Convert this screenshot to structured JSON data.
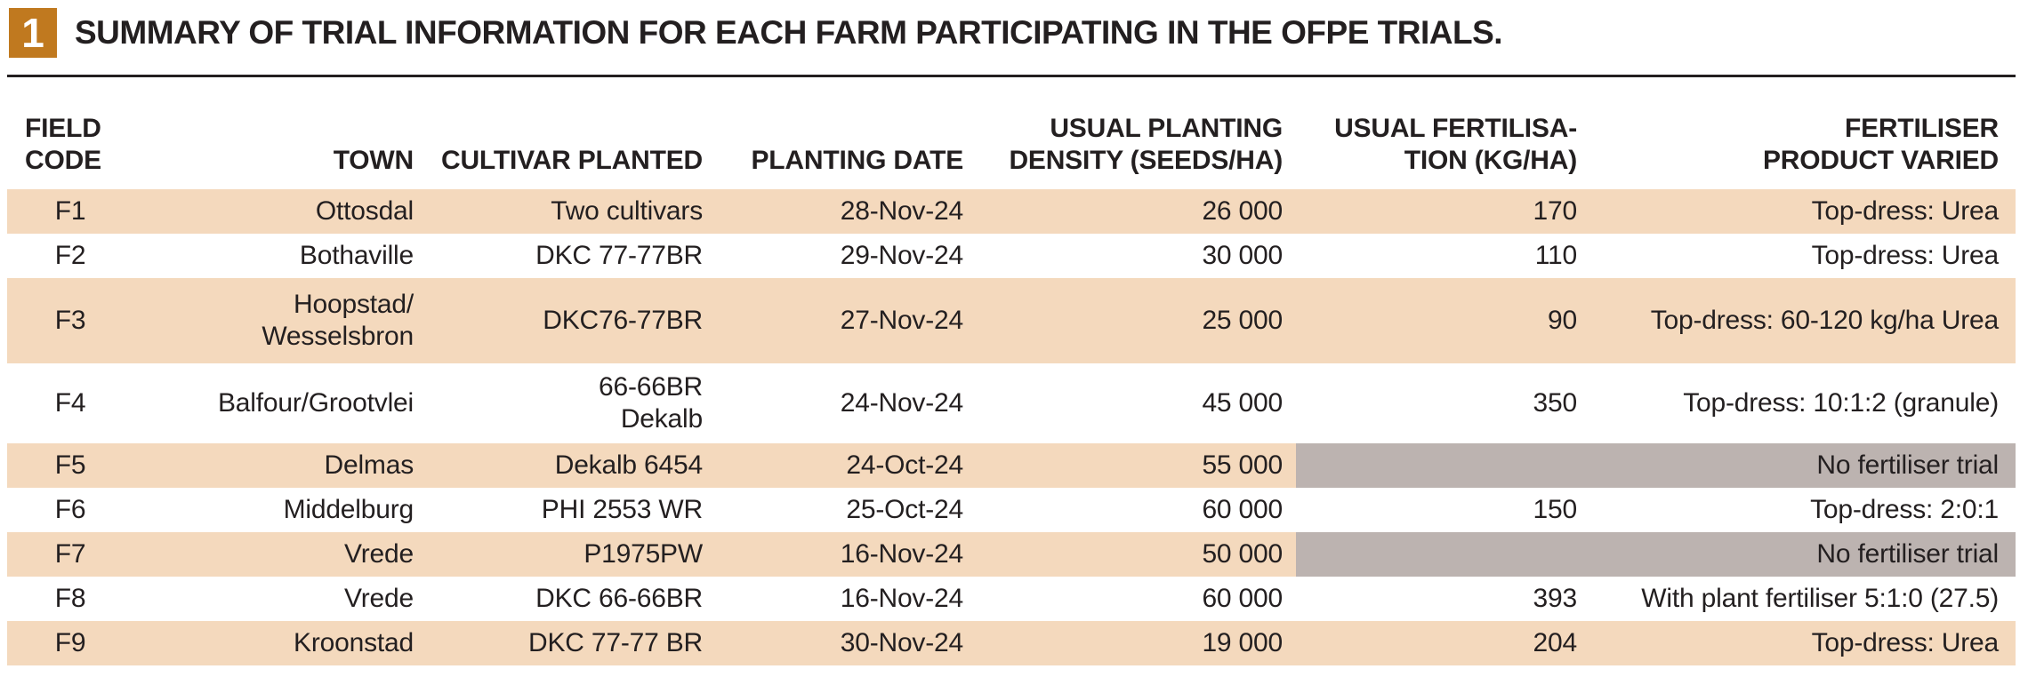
{
  "figure": {
    "number": "1",
    "title": "SUMMARY OF TRIAL INFORMATION FOR EACH FARM PARTICIPATING IN THE OFPE TRIALS."
  },
  "table": {
    "headers": {
      "field_code": [
        "FIELD",
        "CODE"
      ],
      "town": "TOWN",
      "cultivar": "CULTIVAR PLANTED",
      "planting_date": "PLANTING DATE",
      "density": [
        "USUAL PLANTING",
        "DENSITY (SEEDS/HA)"
      ],
      "fertilisation": [
        "USUAL FERTILISA-",
        "TION (KG/HA)"
      ],
      "product": [
        "FERTILISER",
        "PRODUCT VARIED"
      ]
    },
    "rows": [
      {
        "code": "F1",
        "town": "Ottosdal",
        "cultivar": "Two cultivars",
        "date": "28-Nov-24",
        "density": "26 000",
        "fertilisation": "170",
        "product": "Top-dress: Urea"
      },
      {
        "code": "F2",
        "town": "Bothaville",
        "cultivar": "DKC 77-77BR",
        "date": "29-Nov-24",
        "density": "30 000",
        "fertilisation": "110",
        "product": "Top-dress: Urea"
      },
      {
        "code": "F3",
        "town_lines": [
          "Hoopstad/",
          "Wesselsbron"
        ],
        "cultivar": "DKC76-77BR",
        "date": "27-Nov-24",
        "density": "25 000",
        "fertilisation": "90",
        "product": "Top-dress: 60-120 kg/ha Urea"
      },
      {
        "code": "F4",
        "town": "Balfour/Grootvlei",
        "cultivar_lines": [
          "66-66BR",
          "Dekalb"
        ],
        "date": "24-Nov-24",
        "density": "45 000",
        "fertilisation": "350",
        "product": "Top-dress: 10:1:2 (granule)"
      },
      {
        "code": "F5",
        "town": "Delmas",
        "cultivar": "Dekalb 6454",
        "date": "24-Oct-24",
        "density": "55 000",
        "no_trial": "No fertiliser trial"
      },
      {
        "code": "F6",
        "town": "Middelburg",
        "cultivar": "PHI 2553 WR",
        "date": "25-Oct-24",
        "density": "60 000",
        "fertilisation": "150",
        "product": "Top-dress: 2:0:1"
      },
      {
        "code": "F7",
        "town": "Vrede",
        "cultivar": "P1975PW",
        "date": "16-Nov-24",
        "density": "50 000",
        "no_trial": "No fertiliser trial"
      },
      {
        "code": "F8",
        "town": "Vrede",
        "cultivar": "DKC 66-66BR",
        "date": "16-Nov-24",
        "density": "60 000",
        "fertilisation": "393",
        "product": "With plant fertiliser 5:1:0 (27.5)"
      },
      {
        "code": "F9",
        "town": "Kroonstad",
        "cultivar": "DKC 77-77 BR",
        "date": "30-Nov-24",
        "density": "19 000",
        "fertilisation": "204",
        "product": "Top-dress: Urea"
      }
    ]
  },
  "colors": {
    "band": "#F4D9BD",
    "no_trial_cell": "#BCB3B0",
    "badge": "#C0791F",
    "text": "#231F20"
  }
}
